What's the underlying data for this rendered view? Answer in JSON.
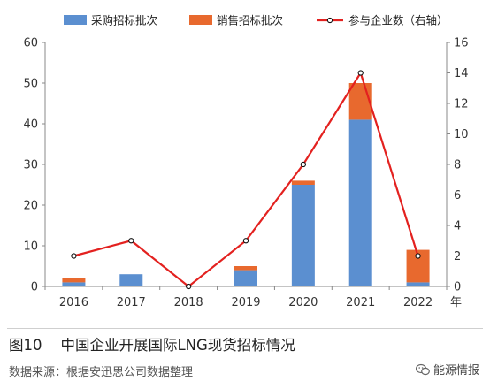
{
  "chart_data": {
    "type": "bar",
    "categories": [
      "2016",
      "2017",
      "2018",
      "2019",
      "2020",
      "2021",
      "2022"
    ],
    "x_unit_label": "年",
    "series": [
      {
        "name": "采购招标批次",
        "values": [
          1,
          3,
          0,
          4,
          25,
          41,
          1
        ],
        "color": "#5b8fd0",
        "axis": "left",
        "kind": "stacked-bar"
      },
      {
        "name": "销售招标批次",
        "values": [
          1,
          0,
          0,
          1,
          1,
          9,
          8
        ],
        "color": "#e8692e",
        "axis": "left",
        "kind": "stacked-bar"
      },
      {
        "name": "参与企业数（右轴）",
        "values": [
          2,
          3,
          0,
          3,
          8,
          14,
          2
        ],
        "color": "#e3211f",
        "axis": "right",
        "kind": "line"
      }
    ],
    "y_left": {
      "ylim": [
        0,
        60
      ],
      "ticks": [
        "0",
        "10",
        "20",
        "30",
        "40",
        "50",
        "60"
      ]
    },
    "y_right": {
      "ylim": [
        0,
        16
      ],
      "ticks": [
        "0",
        "2",
        "4",
        "6",
        "8",
        "10",
        "12",
        "14",
        "16"
      ]
    },
    "legend_position": "top",
    "grid": false
  },
  "caption": {
    "figure_label": "图10",
    "title": "中国企业开展国际LNG现货招标情况"
  },
  "source_note": "数据来源：根据安迅思公司数据整理",
  "watermark": {
    "text": "能源情报",
    "icon": "wechat-icon"
  }
}
